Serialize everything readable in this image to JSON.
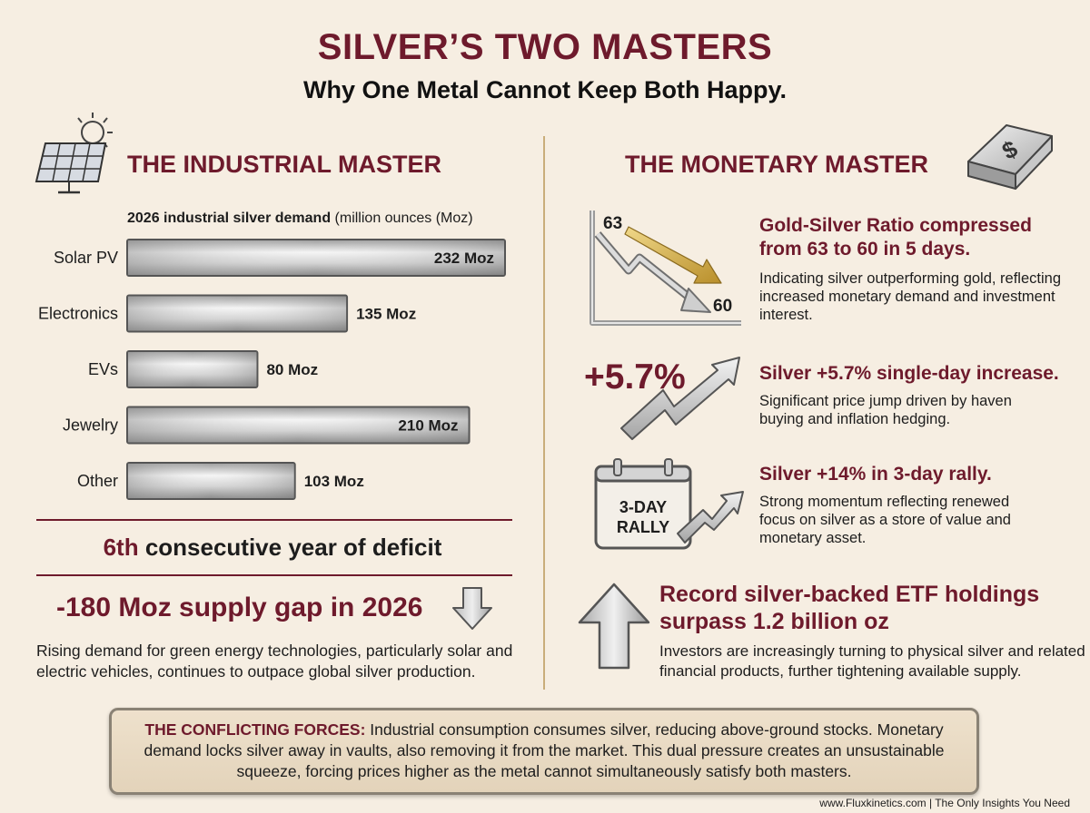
{
  "header": {
    "title": "SILVER’S TWO MASTERS",
    "subtitle": "Why One Metal Cannot Keep Both Happy."
  },
  "industrial": {
    "title": "THE INDUSTRIAL MASTER",
    "chart_caption_bold": "2026 industrial silver demand",
    "chart_caption_rest": " (million ounces (Moz)",
    "deficit_ordinal": "6th",
    "deficit_rest": " consecutive year of deficit",
    "gap_text": "-180 Moz supply gap in 2026",
    "gap_description": "Rising demand for green energy technologies, particularly solar and electric vehicles, continues to outpace global silver production."
  },
  "chart_data": {
    "type": "bar",
    "orientation": "horizontal",
    "title": "2026 industrial silver demand (million ounces (Moz)",
    "categories": [
      "Solar PV",
      "Electronics",
      "EVs",
      "Jewelry",
      "Other"
    ],
    "values": [
      232,
      135,
      80,
      210,
      103
    ],
    "value_labels": [
      "232 Moz",
      "135 Moz",
      "80 Moz",
      "210 Moz",
      "103 Moz"
    ],
    "unit": "Moz",
    "xlim": [
      0,
      232
    ]
  },
  "monetary": {
    "title": "THE MONETARY MASTER",
    "ratio_graph": {
      "start_label": "63",
      "end_label": "60"
    },
    "ratio": {
      "heading": "Gold-Silver Ratio compressed from 63 to 60 in 5 days.",
      "description": "Indicating silver outperforming gold, reflecting increased monetary demand and investment interest."
    },
    "single_day": {
      "big_number": "+5.7%",
      "heading": "Silver +5.7% single-day increase.",
      "description": "Significant price jump driven by haven buying and inflation hedging."
    },
    "rally": {
      "calendar_line1": "3-DAY",
      "calendar_line2": "RALLY",
      "heading": "Silver +14% in 3-day rally.",
      "description": "Strong momentum reflecting renewed focus on silver as a store of value and monetary asset."
    },
    "etf": {
      "heading": "Record silver-backed ETF holdings surpass 1.2 billion oz",
      "description": "Investors are increasingly turning to physical silver and related financial products, further tightening available supply."
    }
  },
  "forces": {
    "lead": "THE CONFLICTING FORCES:",
    "body": " Industrial consumption consumes silver, reducing above-ground stocks. Monetary demand locks silver away in vaults, also removing it from the market. This dual pressure creates an unsustainable squeeze, forcing prices higher as the metal cannot simultaneously satisfy both masters."
  },
  "footer": "www.Fluxkinetics.com | The Only Insights You Need",
  "colors": {
    "accent": "#6e1a2c",
    "background": "#f6eee2",
    "divider": "#c9ad7a"
  }
}
